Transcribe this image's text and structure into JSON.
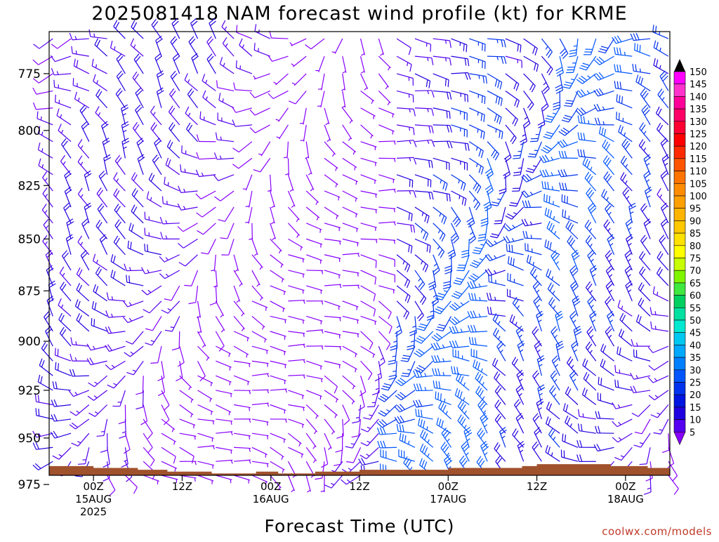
{
  "chart_data": {
    "type": "wind-barb-timeseries",
    "title": "2025081418 NAM forecast wind profile (kt) for KRME",
    "xlabel": "Forecast Time (UTC)",
    "ylabel": "",
    "credit": "coolwx.com/models",
    "y_axis": {
      "ticks": [
        775,
        800,
        825,
        850,
        875,
        900,
        925,
        950,
        975
      ],
      "ylim": [
        970,
        757
      ],
      "units": "hPa"
    },
    "x_axis": {
      "hours_range": [
        -6,
        78
      ],
      "ticks": [
        {
          "hour": 0,
          "lines": [
            "00Z",
            "15AUG",
            "2025"
          ]
        },
        {
          "hour": 12,
          "lines": [
            "12Z"
          ]
        },
        {
          "hour": 24,
          "lines": [
            "00Z",
            "16AUG"
          ]
        },
        {
          "hour": 36,
          "lines": [
            "12Z"
          ]
        },
        {
          "hour": 48,
          "lines": [
            "00Z",
            "17AUG"
          ]
        },
        {
          "hour": 60,
          "lines": [
            "12Z"
          ]
        },
        {
          "hour": 72,
          "lines": [
            "00Z",
            "18AUG"
          ]
        }
      ]
    },
    "colorbar": {
      "values": [
        150,
        145,
        140,
        135,
        130,
        125,
        120,
        115,
        110,
        105,
        100,
        95,
        90,
        85,
        80,
        75,
        70,
        65,
        60,
        55,
        50,
        45,
        40,
        35,
        30,
        25,
        20,
        15,
        10,
        5
      ],
      "colors": [
        "#ff00ff",
        "#ff33cc",
        "#ff0099",
        "#ff0066",
        "#ff0033",
        "#ff0000",
        "#ff2a00",
        "#ff5500",
        "#ff7300",
        "#ff8c00",
        "#ffa000",
        "#ffb400",
        "#ffc800",
        "#ffe100",
        "#ffff00",
        "#c8ff00",
        "#7ff500",
        "#40e840",
        "#00d060",
        "#00e0a0",
        "#00e8d0",
        "#00c8f0",
        "#00a8ff",
        "#0080ff",
        "#0055ff",
        "#0033ee",
        "#0015e0",
        "#2000e0",
        "#5500f0",
        "#8800ff"
      ]
    },
    "surface": {
      "color": "#a0522d",
      "pressure_hpa": [
        {
          "hour": -6,
          "p": 965
        },
        {
          "hour": 0,
          "p": 966
        },
        {
          "hour": 6,
          "p": 967
        },
        {
          "hour": 10,
          "p": 968
        },
        {
          "hour": 16,
          "p": 969
        },
        {
          "hour": 22,
          "p": 968
        },
        {
          "hour": 25,
          "p": 969
        },
        {
          "hour": 30,
          "p": 968
        },
        {
          "hour": 36,
          "p": 967
        },
        {
          "hour": 48,
          "p": 966
        },
        {
          "hour": 58,
          "p": 965
        },
        {
          "hour": 60,
          "p": 964
        },
        {
          "hour": 70,
          "p": 965
        },
        {
          "hour": 75,
          "p": 966
        },
        {
          "hour": 78,
          "p": 966
        }
      ]
    }
  }
}
